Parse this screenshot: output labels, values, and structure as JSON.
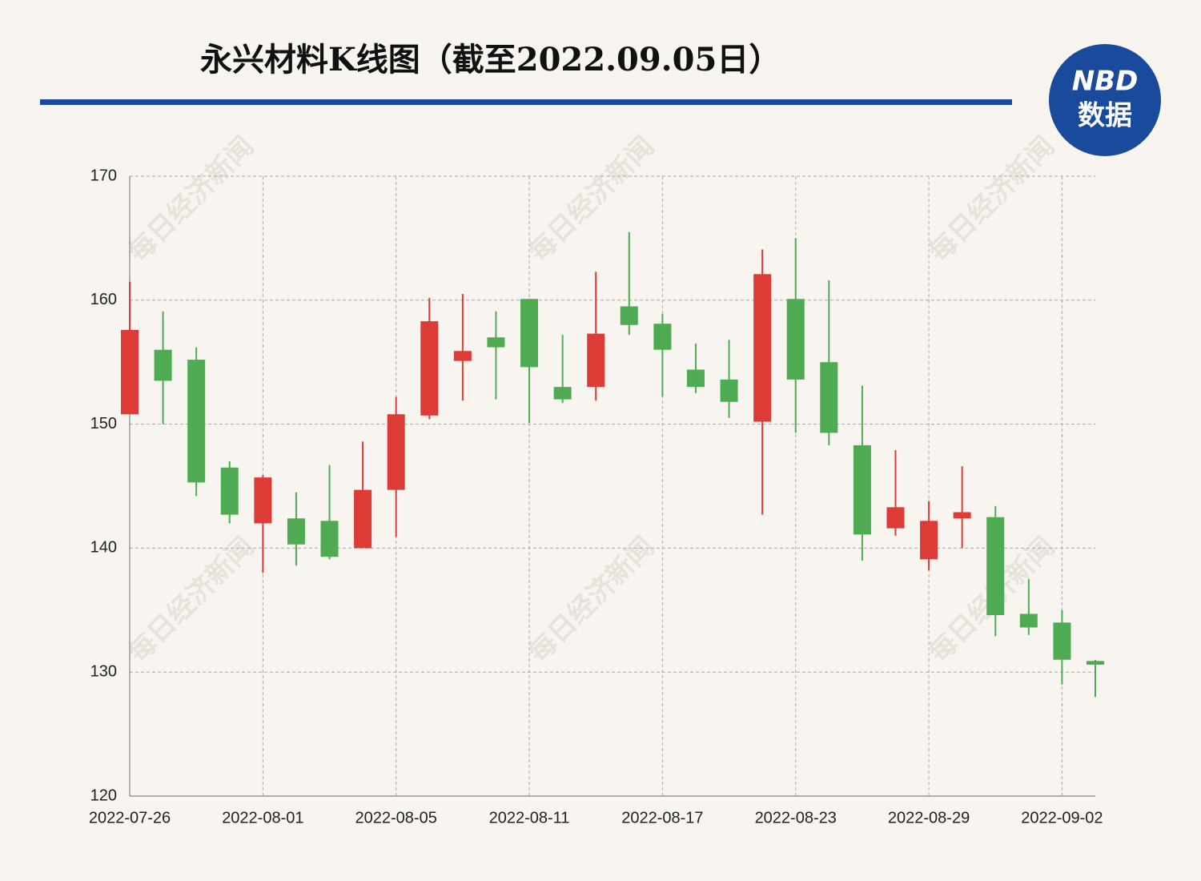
{
  "chart_data": {
    "type": "candlestick",
    "title": "永兴材料K线图（截至2022.09.05日）",
    "logo": {
      "top": "NBD",
      "bottom": "数据"
    },
    "watermark": "每日经济新闻",
    "categories": [
      "2022-07-26",
      null,
      null,
      null,
      "2022-08-01",
      null,
      null,
      null,
      "2022-08-05",
      null,
      null,
      null,
      "2022-08-11",
      null,
      null,
      null,
      "2022-08-17",
      null,
      null,
      null,
      "2022-08-23",
      null,
      null,
      null,
      "2022-08-29",
      null,
      null,
      null,
      "2022-09-02",
      null
    ],
    "open": [
      150.8,
      156.0,
      155.2,
      146.5,
      142.0,
      142.4,
      142.2,
      140.0,
      144.7,
      150.7,
      155.1,
      157.0,
      160.1,
      153.0,
      153.0,
      159.5,
      158.1,
      154.4,
      153.6,
      150.2,
      160.1,
      155.0,
      148.3,
      141.6,
      139.1,
      142.4,
      142.5,
      134.7,
      134.0,
      130.9
    ],
    "high": [
      161.5,
      159.1,
      156.2,
      147.0,
      145.9,
      144.5,
      146.7,
      148.6,
      152.2,
      160.2,
      160.5,
      159.1,
      160.1,
      157.2,
      162.3,
      165.5,
      158.9,
      156.5,
      156.8,
      164.1,
      165.0,
      161.6,
      153.1,
      147.9,
      143.8,
      146.6,
      143.4,
      137.5,
      135.0,
      131.0
    ],
    "low": [
      150.8,
      150.0,
      144.2,
      142.0,
      138.0,
      138.6,
      139.1,
      140.0,
      140.9,
      150.4,
      151.9,
      152.0,
      150.1,
      151.7,
      151.9,
      157.2,
      152.2,
      152.5,
      150.5,
      142.7,
      149.3,
      148.3,
      139.0,
      141.0,
      138.2,
      140.0,
      132.9,
      133.0,
      129.0,
      128.0
    ],
    "close": [
      157.6,
      153.5,
      145.3,
      142.7,
      145.7,
      140.3,
      139.3,
      144.7,
      150.8,
      158.3,
      155.9,
      156.2,
      154.6,
      152.0,
      157.3,
      158.0,
      156.0,
      153.0,
      151.8,
      162.1,
      153.6,
      149.3,
      141.1,
      143.3,
      142.2,
      142.9,
      134.6,
      133.6,
      131.0,
      130.6
    ],
    "up_color": "#dc3c35",
    "down_color": "#4fab52",
    "ylim": [
      120,
      170
    ],
    "yticks": [
      120,
      130,
      140,
      150,
      160,
      170
    ],
    "grid": true
  }
}
